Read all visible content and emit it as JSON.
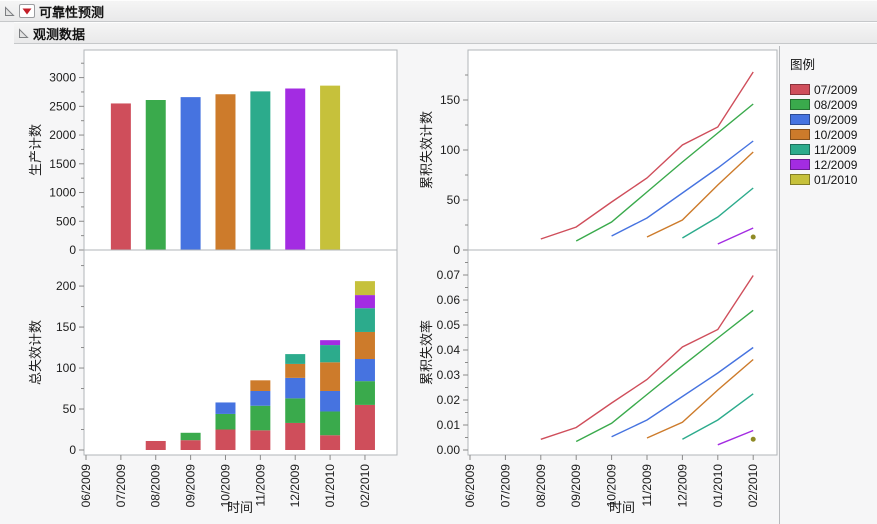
{
  "window": {
    "title": "可靠性预测",
    "section_title": "观测数据"
  },
  "axis": {
    "time_label": "时间",
    "months": [
      "06/2009",
      "07/2009",
      "08/2009",
      "09/2009",
      "10/2009",
      "11/2009",
      "12/2009",
      "01/2010",
      "02/2010"
    ]
  },
  "palette": {
    "07/2009": "#cf4e5b",
    "08/2009": "#3aaa4c",
    "09/2009": "#4673e0",
    "10/2009": "#cd7b2b",
    "11/2009": "#2cab8c",
    "12/2009": "#a32ce2",
    "01/2010": "#c6c13b",
    "marker_olive": "#8f8a26",
    "frame_border": "#b2b5b8",
    "tick": "#8a8a8a",
    "text": "#1c1c1c"
  },
  "legend": {
    "title": "图例",
    "items": [
      {
        "label": "07/2009",
        "color": "#cf4e5b"
      },
      {
        "label": "08/2009",
        "color": "#3aaa4c"
      },
      {
        "label": "09/2009",
        "color": "#4673e0"
      },
      {
        "label": "10/2009",
        "color": "#cd7b2b"
      },
      {
        "label": "11/2009",
        "color": "#2cab8c"
      },
      {
        "label": "12/2009",
        "color": "#a32ce2"
      },
      {
        "label": "01/2010",
        "color": "#c6c13b"
      }
    ]
  },
  "chart_data": [
    {
      "id": "production-count",
      "type": "bar",
      "ylabel": "生产计数",
      "yticks": [
        0,
        500,
        1000,
        1500,
        2000,
        2500,
        3000
      ],
      "ylim": [
        0,
        3480
      ],
      "ytick_decimals": 0,
      "bars": [
        {
          "month": "07/2009",
          "value": 2550,
          "color": "#cf4e5b"
        },
        {
          "month": "08/2009",
          "value": 2610,
          "color": "#3aaa4c"
        },
        {
          "month": "09/2009",
          "value": 2660,
          "color": "#4673e0"
        },
        {
          "month": "10/2009",
          "value": 2710,
          "color": "#cd7b2b"
        },
        {
          "month": "11/2009",
          "value": 2760,
          "color": "#2cab8c"
        },
        {
          "month": "12/2009",
          "value": 2810,
          "color": "#a32ce2"
        },
        {
          "month": "01/2010",
          "value": 2860,
          "color": "#c6c13b"
        }
      ]
    },
    {
      "id": "total-failure-count",
      "type": "stacked-bar",
      "ylabel": "总失效计数",
      "yticks": [
        0,
        50,
        100,
        150,
        200
      ],
      "ylim": [
        0,
        244
      ],
      "ytick_decimals": 0,
      "series": [
        {
          "name": "07/2009",
          "color": "#cf4e5b",
          "values": [
            0,
            0,
            11,
            12,
            25,
            24,
            33,
            18,
            55
          ]
        },
        {
          "name": "08/2009",
          "color": "#3aaa4c",
          "values": [
            0,
            0,
            0,
            9,
            19,
            30,
            30,
            29,
            29
          ]
        },
        {
          "name": "09/2009",
          "color": "#4673e0",
          "values": [
            0,
            0,
            0,
            0,
            14,
            18,
            25,
            25,
            27
          ]
        },
        {
          "name": "10/2009",
          "color": "#cd7b2b",
          "values": [
            0,
            0,
            0,
            0,
            0,
            13,
            17,
            35,
            33
          ]
        },
        {
          "name": "11/2009",
          "color": "#2cab8c",
          "values": [
            0,
            0,
            0,
            0,
            0,
            0,
            12,
            21,
            29
          ]
        },
        {
          "name": "12/2009",
          "color": "#a32ce2",
          "values": [
            0,
            0,
            0,
            0,
            0,
            0,
            0,
            6,
            16
          ]
        },
        {
          "name": "01/2010",
          "color": "#c6c13b",
          "values": [
            0,
            0,
            0,
            0,
            0,
            0,
            0,
            0,
            17
          ]
        }
      ]
    },
    {
      "id": "cumulative-failure-count",
      "type": "line",
      "ylabel": "累积失效计数",
      "yticks": [
        0,
        50,
        100,
        150
      ],
      "ylim": [
        0,
        200
      ],
      "ytick_decimals": 0,
      "series": [
        {
          "name": "07/2009",
          "color": "#cf4e5b",
          "start": 2,
          "values": [
            11,
            23,
            48,
            72,
            105,
            123,
            178
          ]
        },
        {
          "name": "08/2009",
          "color": "#3aaa4c",
          "start": 3,
          "values": [
            9,
            28,
            58,
            88,
            117,
            146
          ]
        },
        {
          "name": "09/2009",
          "color": "#4673e0",
          "start": 4,
          "values": [
            14,
            32,
            57,
            82,
            109
          ]
        },
        {
          "name": "10/2009",
          "color": "#cd7b2b",
          "start": 5,
          "values": [
            13,
            30,
            65,
            98
          ]
        },
        {
          "name": "11/2009",
          "color": "#2cab8c",
          "start": 6,
          "values": [
            12,
            33,
            62
          ]
        },
        {
          "name": "12/2009",
          "color": "#a32ce2",
          "start": 7,
          "values": [
            6,
            22
          ]
        },
        {
          "name": "01/2010",
          "color": "#c6c13b",
          "start": 8,
          "values": [
            17
          ],
          "marker": true,
          "marker_color": "#8f8a26"
        }
      ]
    },
    {
      "id": "cumulative-failure-rate",
      "type": "line",
      "ylabel": "累积失效率",
      "yticks": [
        0,
        0.01,
        0.02,
        0.03,
        0.04,
        0.05,
        0.06,
        0.07
      ],
      "ylim": [
        0,
        0.08
      ],
      "ytick_decimals": 2,
      "series": [
        {
          "name": "07/2009",
          "color": "#cf4e5b",
          "start": 2,
          "values": [
            0.0043,
            0.009,
            0.0188,
            0.0282,
            0.0412,
            0.0482,
            0.0698
          ]
        },
        {
          "name": "08/2009",
          "color": "#3aaa4c",
          "start": 3,
          "values": [
            0.0034,
            0.0107,
            0.0222,
            0.0337,
            0.0448,
            0.0559
          ]
        },
        {
          "name": "09/2009",
          "color": "#4673e0",
          "start": 4,
          "values": [
            0.0053,
            0.012,
            0.0214,
            0.0308,
            0.041
          ]
        },
        {
          "name": "10/2009",
          "color": "#cd7b2b",
          "start": 5,
          "values": [
            0.0048,
            0.0111,
            0.024,
            0.0362
          ]
        },
        {
          "name": "11/2009",
          "color": "#2cab8c",
          "start": 6,
          "values": [
            0.0043,
            0.012,
            0.0225
          ]
        },
        {
          "name": "12/2009",
          "color": "#a32ce2",
          "start": 7,
          "values": [
            0.0021,
            0.0078
          ]
        },
        {
          "name": "01/2010",
          "color": "#c6c13b",
          "start": 8,
          "values": [
            0.0059
          ],
          "marker": true,
          "marker_color": "#8f8a26"
        }
      ]
    }
  ]
}
